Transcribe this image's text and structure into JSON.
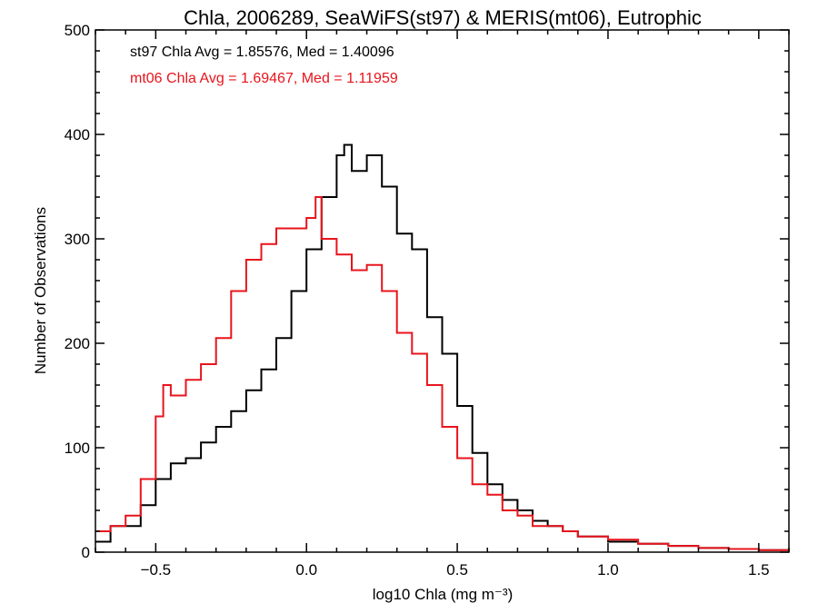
{
  "chart_data": {
    "type": "line",
    "style": "histogram-step",
    "title": "Chla, 2006289, SeaWiFS(st97) & MERIS(mt06), Eutrophic",
    "xlabel": "log10 Chla (mg m⁻³)",
    "ylabel": "Number of Observations",
    "xlim": [
      -0.7,
      1.6
    ],
    "ylim": [
      0,
      500
    ],
    "xticks": [
      -0.5,
      0.0,
      0.5,
      1.0,
      1.5
    ],
    "xtick_labels": [
      "−0.5",
      "0.0",
      "0.5",
      "1.0",
      "1.5"
    ],
    "yticks": [
      0,
      100,
      200,
      300,
      400,
      500
    ],
    "ytick_labels": [
      "0",
      "100",
      "200",
      "300",
      "400",
      "500"
    ],
    "grid": false,
    "annotations": [
      {
        "text": "st97 Chla Avg = 1.85576, Med = 1.40096",
        "color": "#000000"
      },
      {
        "text": "mt06 Chla Avg = 1.69467, Med = 1.11959",
        "color": "#e8141c"
      }
    ],
    "series": [
      {
        "color": "#000000",
        "x": [
          -0.7,
          -0.65,
          -0.6,
          -0.55,
          -0.5,
          -0.45,
          -0.4,
          -0.35,
          -0.3,
          -0.25,
          -0.2,
          -0.15,
          -0.1,
          -0.05,
          0.0,
          0.05,
          0.1,
          0.125,
          0.15,
          0.2,
          0.25,
          0.3,
          0.35,
          0.4,
          0.45,
          0.5,
          0.55,
          0.6,
          0.65,
          0.7,
          0.75,
          0.8,
          0.85,
          0.9,
          1.0,
          1.1,
          1.2,
          1.3,
          1.4,
          1.5,
          1.6
        ],
        "y": [
          10,
          25,
          25,
          45,
          70,
          85,
          90,
          105,
          120,
          135,
          155,
          175,
          205,
          250,
          290,
          340,
          380,
          390,
          365,
          380,
          350,
          305,
          290,
          225,
          190,
          140,
          95,
          65,
          50,
          40,
          30,
          25,
          20,
          15,
          10,
          8,
          6,
          4,
          3,
          2,
          1
        ]
      },
      {
        "color": "#e8141c",
        "x": [
          -0.7,
          -0.65,
          -0.6,
          -0.55,
          -0.5,
          -0.475,
          -0.45,
          -0.4,
          -0.35,
          -0.3,
          -0.25,
          -0.2,
          -0.15,
          -0.1,
          -0.05,
          0.0,
          0.03,
          0.05,
          0.1,
          0.15,
          0.2,
          0.25,
          0.3,
          0.35,
          0.4,
          0.45,
          0.5,
          0.55,
          0.6,
          0.65,
          0.7,
          0.75,
          0.8,
          0.85,
          0.9,
          1.0,
          1.1,
          1.2,
          1.3,
          1.4,
          1.5,
          1.6
        ],
        "y": [
          20,
          25,
          35,
          70,
          130,
          160,
          150,
          165,
          180,
          205,
          250,
          280,
          295,
          310,
          310,
          320,
          340,
          300,
          285,
          270,
          275,
          250,
          210,
          190,
          160,
          120,
          90,
          65,
          55,
          40,
          35,
          25,
          25,
          20,
          15,
          12,
          8,
          6,
          4,
          3,
          2,
          1
        ]
      }
    ]
  }
}
